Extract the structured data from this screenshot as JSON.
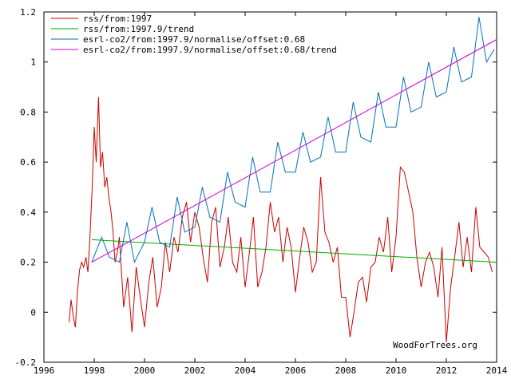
{
  "chart_data": {
    "type": "line",
    "title": "",
    "xlabel": "",
    "ylabel": "",
    "xlim": [
      1996,
      2014
    ],
    "ylim": [
      -0.2,
      1.2
    ],
    "x_ticks": [
      1996,
      1998,
      2000,
      2002,
      2004,
      2006,
      2008,
      2010,
      2012,
      2014
    ],
    "y_ticks": [
      -0.2,
      0,
      0.2,
      0.4,
      0.6,
      0.8,
      1,
      1.2
    ],
    "x_tick_labels": [
      "1996",
      "1998",
      "2000",
      "2002",
      "2004",
      "2006",
      "2008",
      "2010",
      "2012",
      "2014"
    ],
    "y_tick_labels": [
      "-0.2",
      "0",
      "0.2",
      "0.4",
      "0.6",
      "0.8",
      "1",
      "1.2"
    ],
    "grid": false,
    "legend_position": "top-left",
    "series": [
      {
        "name": "rss/from:1997",
        "color": "#cc0000",
        "x": [
          1997.0,
          1997.08,
          1997.17,
          1997.25,
          1997.33,
          1997.42,
          1997.5,
          1997.58,
          1997.67,
          1997.75,
          1997.83,
          1997.92,
          1998.0,
          1998.08,
          1998.17,
          1998.25,
          1998.33,
          1998.42,
          1998.5,
          1998.58,
          1998.67,
          1998.75,
          1998.83,
          1998.92,
          1999.0,
          1999.17,
          1999.33,
          1999.5,
          1999.67,
          1999.83,
          2000.0,
          2000.17,
          2000.33,
          2000.5,
          2000.67,
          2000.83,
          2001.0,
          2001.17,
          2001.33,
          2001.5,
          2001.67,
          2001.83,
          2002.0,
          2002.17,
          2002.33,
          2002.5,
          2002.67,
          2002.83,
          2003.0,
          2003.17,
          2003.33,
          2003.5,
          2003.67,
          2003.83,
          2004.0,
          2004.17,
          2004.33,
          2004.5,
          2004.67,
          2004.83,
          2005.0,
          2005.17,
          2005.33,
          2005.5,
          2005.67,
          2005.83,
          2006.0,
          2006.17,
          2006.33,
          2006.5,
          2006.67,
          2006.83,
          2007.0,
          2007.17,
          2007.33,
          2007.5,
          2007.67,
          2007.83,
          2008.0,
          2008.17,
          2008.33,
          2008.5,
          2008.67,
          2008.83,
          2009.0,
          2009.17,
          2009.33,
          2009.5,
          2009.67,
          2009.83,
          2010.0,
          2010.17,
          2010.33,
          2010.5,
          2010.67,
          2010.83,
          2011.0,
          2011.17,
          2011.33,
          2011.5,
          2011.67,
          2011.83,
          2012.0,
          2012.17,
          2012.33,
          2012.5,
          2012.67,
          2012.83,
          2013.0,
          2013.17,
          2013.33,
          2013.5,
          2013.67,
          2013.83
        ],
        "values": [
          -0.04,
          0.05,
          -0.02,
          -0.06,
          0.08,
          0.17,
          0.2,
          0.18,
          0.22,
          0.16,
          0.3,
          0.5,
          0.74,
          0.6,
          0.86,
          0.58,
          0.64,
          0.5,
          0.54,
          0.46,
          0.4,
          0.32,
          0.2,
          0.24,
          0.3,
          0.02,
          0.14,
          -0.08,
          0.18,
          0.06,
          -0.06,
          0.12,
          0.22,
          0.02,
          0.1,
          0.28,
          0.16,
          0.3,
          0.24,
          0.38,
          0.44,
          0.28,
          0.4,
          0.34,
          0.22,
          0.12,
          0.36,
          0.42,
          0.18,
          0.26,
          0.38,
          0.2,
          0.16,
          0.3,
          0.1,
          0.24,
          0.38,
          0.1,
          0.16,
          0.26,
          0.44,
          0.32,
          0.38,
          0.2,
          0.34,
          0.26,
          0.08,
          0.22,
          0.34,
          0.28,
          0.16,
          0.2,
          0.54,
          0.32,
          0.28,
          0.2,
          0.26,
          0.06,
          0.06,
          -0.1,
          0.0,
          0.12,
          0.14,
          0.04,
          0.18,
          0.2,
          0.3,
          0.24,
          0.38,
          0.16,
          0.3,
          0.58,
          0.56,
          0.48,
          0.4,
          0.22,
          0.1,
          0.2,
          0.24,
          0.18,
          0.06,
          0.26,
          -0.12,
          0.1,
          0.22,
          0.36,
          0.18,
          0.3,
          0.16,
          0.42,
          0.26,
          0.24,
          0.22,
          0.16
        ]
      },
      {
        "name": "rss/from:1997.9/trend",
        "color": "#00aa00",
        "x": [
          1997.9,
          2014.0
        ],
        "values": [
          0.29,
          0.2
        ]
      },
      {
        "name": "esrl-co2/from:1997.9/normalise/offset:0.68",
        "color": "#0070c0",
        "x": [
          1997.9,
          1998.3,
          1998.6,
          1999.0,
          1999.3,
          1999.6,
          2000.0,
          2000.3,
          2000.6,
          2001.0,
          2001.3,
          2001.6,
          2002.0,
          2002.3,
          2002.6,
          2003.0,
          2003.3,
          2003.6,
          2004.0,
          2004.3,
          2004.6,
          2005.0,
          2005.3,
          2005.6,
          2006.0,
          2006.3,
          2006.6,
          2007.0,
          2007.3,
          2007.6,
          2008.0,
          2008.3,
          2008.6,
          2009.0,
          2009.3,
          2009.6,
          2010.0,
          2010.3,
          2010.6,
          2011.0,
          2011.3,
          2011.6,
          2012.0,
          2012.3,
          2012.6,
          2013.0,
          2013.3,
          2013.6,
          2013.9
        ],
        "values": [
          0.2,
          0.3,
          0.22,
          0.2,
          0.36,
          0.2,
          0.28,
          0.42,
          0.28,
          0.26,
          0.46,
          0.32,
          0.34,
          0.5,
          0.38,
          0.36,
          0.56,
          0.44,
          0.42,
          0.62,
          0.48,
          0.48,
          0.68,
          0.56,
          0.56,
          0.72,
          0.6,
          0.62,
          0.78,
          0.64,
          0.64,
          0.84,
          0.7,
          0.68,
          0.88,
          0.74,
          0.74,
          0.94,
          0.8,
          0.82,
          1.0,
          0.86,
          0.88,
          1.06,
          0.92,
          0.94,
          1.18,
          1.0,
          1.05
        ]
      },
      {
        "name": "esrl-co2/from:1997.9/normalise/offset:0.68/trend",
        "color": "#cc00cc",
        "x": [
          1997.9,
          2014.0
        ],
        "values": [
          0.2,
          1.09
        ]
      }
    ],
    "annotations": [
      "WoodForTrees.org"
    ]
  }
}
